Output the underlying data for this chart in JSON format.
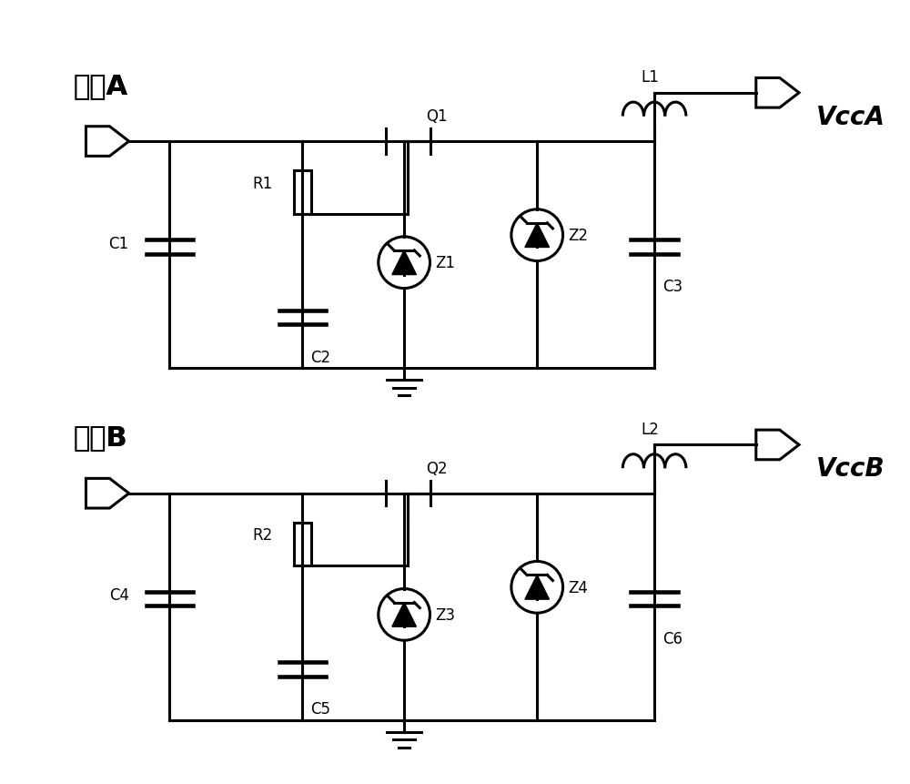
{
  "bg_color": "#ffffff",
  "line_color": "#000000",
  "line_width": 2.2,
  "circuits": [
    {
      "label_power": "电源A",
      "label_vcc": "VccA",
      "label_q": "Q1",
      "label_r": "R1",
      "label_c1": "C1",
      "label_c2": "C2",
      "label_c3": "C3",
      "label_z1": "Z1",
      "label_z2": "Z2",
      "label_l": "L1",
      "yo": 4.5
    },
    {
      "label_power": "电源B",
      "label_vcc": "VccB",
      "label_q": "Q2",
      "label_r": "R2",
      "label_c1": "C4",
      "label_c2": "C5",
      "label_c3": "C6",
      "label_z1": "Z3",
      "label_z2": "Z4",
      "label_l": "L2",
      "yo": 0.0
    }
  ]
}
